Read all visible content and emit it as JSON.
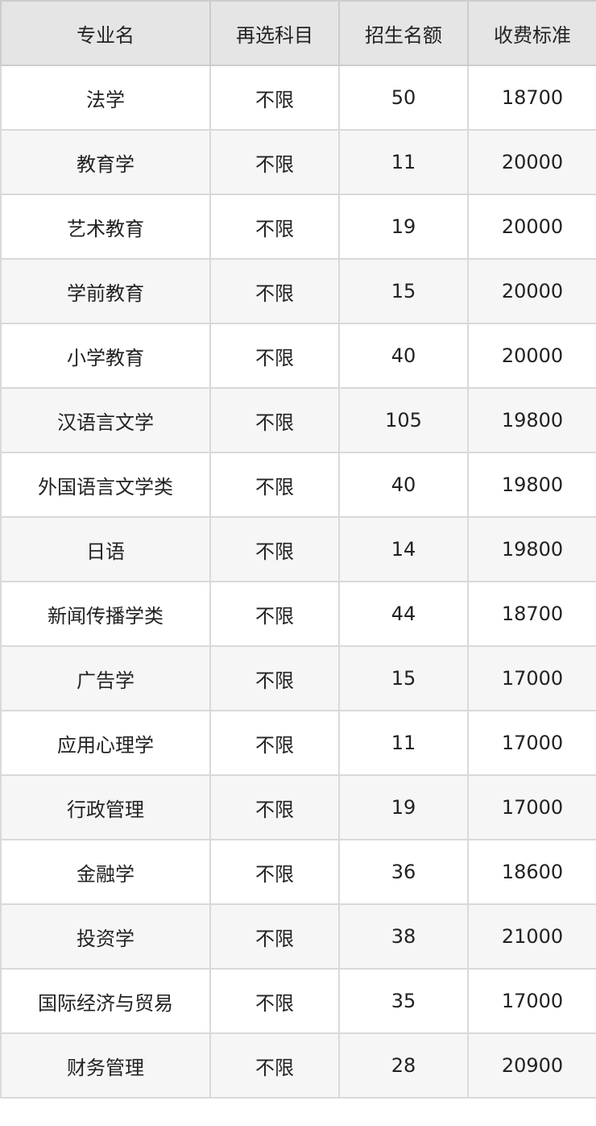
{
  "table": {
    "headers": [
      "专业名",
      "再选科目",
      "招生名额",
      "收费标准"
    ],
    "rows": [
      [
        "法学",
        "不限",
        "50",
        "18700"
      ],
      [
        "教育学",
        "不限",
        "11",
        "20000"
      ],
      [
        "艺术教育",
        "不限",
        "19",
        "20000"
      ],
      [
        "学前教育",
        "不限",
        "15",
        "20000"
      ],
      [
        "小学教育",
        "不限",
        "40",
        "20000"
      ],
      [
        "汉语言文学",
        "不限",
        "105",
        "19800"
      ],
      [
        "外国语言文学类",
        "不限",
        "40",
        "19800"
      ],
      [
        "日语",
        "不限",
        "14",
        "19800"
      ],
      [
        "新闻传播学类",
        "不限",
        "44",
        "18700"
      ],
      [
        "广告学",
        "不限",
        "15",
        "17000"
      ],
      [
        "应用心理学",
        "不限",
        "11",
        "17000"
      ],
      [
        "行政管理",
        "不限",
        "19",
        "17000"
      ],
      [
        "金融学",
        "不限",
        "36",
        "18600"
      ],
      [
        "投资学",
        "不限",
        "38",
        "21000"
      ],
      [
        "国际经济与贸易",
        "不限",
        "35",
        "17000"
      ],
      [
        "财务管理",
        "不限",
        "28",
        "20900"
      ]
    ]
  },
  "colors": {
    "header_bg": "#e5e5e5",
    "row_alt_bg": "#f6f6f6",
    "border": "#d9d9d9",
    "text": "#222222"
  }
}
